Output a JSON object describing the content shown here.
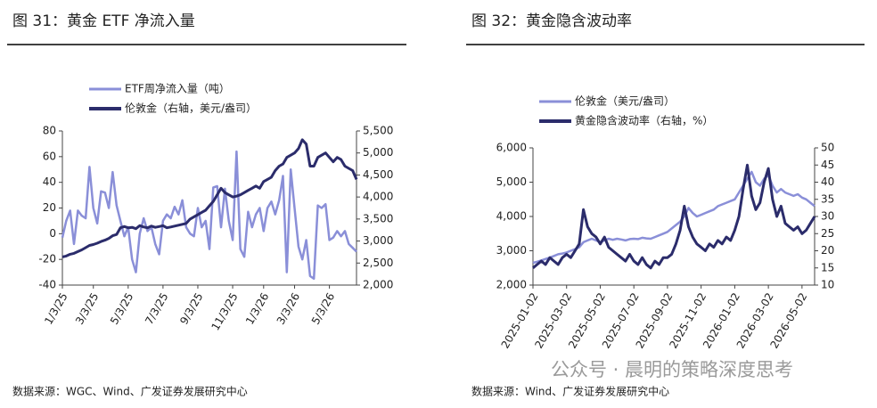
{
  "chart_data": [
    {
      "type": "line",
      "title": "图 31：黄金 ETF 净流入量",
      "source": "数据来源：WGC、Wind、广发证券发展研究中心",
      "categories": [
        "1/3/25",
        null,
        null,
        null,
        null,
        null,
        null,
        null,
        "3/3/25",
        null,
        null,
        null,
        null,
        null,
        null,
        null,
        null,
        "5/3/25",
        null,
        null,
        null,
        null,
        null,
        null,
        null,
        null,
        "7/3/25",
        null,
        null,
        null,
        null,
        null,
        null,
        null,
        null,
        "9/3/25",
        null,
        null,
        null,
        null,
        null,
        null,
        null,
        null,
        "11/3/25",
        null,
        null,
        null,
        null,
        null,
        null,
        null,
        "1/3/26",
        null,
        null,
        null,
        null,
        null,
        null,
        null,
        "3/3/26",
        null,
        null,
        null,
        null,
        null,
        null,
        null,
        null,
        "5/3/26",
        null,
        null,
        null,
        null,
        null,
        null,
        null
      ],
      "series": [
        {
          "name": "ETF周净流入量（吨）",
          "color": "#8a8fd8",
          "values": [
            -3,
            10,
            18,
            -8,
            18,
            14,
            12,
            52,
            20,
            8,
            33,
            32,
            20,
            48,
            22,
            10,
            -2,
            5,
            -20,
            -30,
            0,
            12,
            2,
            5,
            -8,
            -16,
            10,
            15,
            12,
            21,
            15,
            26,
            5,
            0,
            -2,
            20,
            5,
            10,
            -12,
            36,
            37,
            5,
            35,
            10,
            -5,
            64,
            -12,
            -18,
            17,
            5,
            15,
            20,
            2,
            20,
            25,
            15,
            26,
            45,
            -30,
            50,
            20,
            -10,
            -20,
            -5,
            -33,
            -35,
            22,
            20,
            23,
            -5,
            -3,
            2,
            -2,
            2,
            -8,
            -11,
            -14
          ]
        },
        {
          "name": "伦敦金（右轴，美元/盎司）",
          "color": "#2b2c6b",
          "axis": "y2",
          "values": [
            2640,
            2660,
            2700,
            2720,
            2760,
            2800,
            2850,
            2900,
            2920,
            2950,
            2990,
            3020,
            3060,
            3120,
            3150,
            3300,
            3330,
            3300,
            3310,
            3280,
            3350,
            3320,
            3300,
            3340,
            3310,
            3330,
            3350,
            3300,
            3320,
            3340,
            3360,
            3380,
            3400,
            3500,
            3550,
            3600,
            3650,
            3700,
            3800,
            3900,
            4050,
            4200,
            4100,
            4050,
            4000,
            4020,
            4050,
            4100,
            4150,
            4200,
            4250,
            4200,
            4350,
            4400,
            4450,
            4600,
            4700,
            4750,
            4900,
            4950,
            5000,
            5100,
            5300,
            5200,
            4700,
            4700,
            4900,
            4950,
            5000,
            4900,
            4800,
            4900,
            4850,
            4700,
            4650,
            4600,
            4400
          ]
        }
      ],
      "ylim": [
        -40,
        80
      ],
      "yticks": [
        -40,
        -20,
        0,
        20,
        40,
        60,
        80
      ],
      "y2lim": [
        2000,
        5500
      ],
      "y2ticks": [
        {
          "value": 2000,
          "label": "2,000"
        },
        {
          "value": 2500,
          "label": "2,500"
        },
        {
          "value": 3000,
          "label": "3,000"
        },
        {
          "value": 3500,
          "label": "3,500"
        },
        {
          "value": 4000,
          "label": "4,000"
        },
        {
          "value": 4500,
          "label": "4,500"
        },
        {
          "value": 5000,
          "label": "5,000"
        },
        {
          "value": 5500,
          "label": "5,500"
        }
      ]
    },
    {
      "type": "line",
      "title": "图 32：黄金隐含波动率",
      "source": "数据来源：Wind、广发证券发展研究中心",
      "categories": [
        "2025-01-02",
        null,
        null,
        null,
        null,
        null,
        null,
        null,
        "2025-03-02",
        null,
        null,
        null,
        null,
        null,
        null,
        null,
        "2025-05-02",
        null,
        null,
        null,
        null,
        null,
        null,
        null,
        "2025-07-02",
        null,
        null,
        null,
        null,
        null,
        null,
        null,
        "2025-09-02",
        null,
        null,
        null,
        null,
        null,
        null,
        null,
        "2025-11-02",
        null,
        null,
        null,
        null,
        null,
        null,
        null,
        "2026-01-02",
        null,
        null,
        null,
        null,
        null,
        null,
        null,
        "2026-03-02",
        null,
        null,
        null,
        null,
        null,
        null,
        null,
        "2026-05-02",
        null,
        null,
        null
      ],
      "series": [
        {
          "name": "伦敦金（美元/盎司）",
          "color": "#8a8fd8",
          "values": [
            2650,
            2680,
            2720,
            2760,
            2800,
            2850,
            2900,
            2920,
            2950,
            3000,
            3050,
            3100,
            3250,
            3300,
            3350,
            3300,
            3250,
            3300,
            3350,
            3320,
            3350,
            3330,
            3300,
            3340,
            3350,
            3340,
            3380,
            3360,
            3350,
            3400,
            3450,
            3500,
            3550,
            3650,
            3750,
            3850,
            4000,
            4250,
            4100,
            4000,
            4050,
            4100,
            4150,
            4200,
            4300,
            4350,
            4400,
            4450,
            4500,
            4700,
            4900,
            5100,
            5300,
            5000,
            4900,
            5100,
            5200,
            4900,
            4700,
            4800,
            4700,
            4650,
            4600,
            4650,
            4550,
            4500,
            4400,
            4300
          ]
        },
        {
          "name": "黄金隐含波动率（右轴，%）",
          "color": "#2b2c6b",
          "axis": "y2",
          "values": [
            15,
            16,
            17,
            16,
            18,
            17,
            16,
            18,
            19,
            18,
            20,
            22,
            32,
            27,
            25,
            24,
            22,
            24,
            21,
            20,
            19,
            18,
            17,
            19,
            17,
            16,
            18,
            16,
            15,
            17,
            16,
            18,
            18,
            19,
            22,
            26,
            33,
            27,
            24,
            22,
            21,
            20,
            22,
            21,
            23,
            22,
            24,
            23,
            26,
            30,
            38,
            45,
            36,
            32,
            34,
            40,
            44,
            35,
            30,
            33,
            28,
            27,
            26,
            27,
            25,
            26,
            28,
            30
          ]
        }
      ],
      "ylim": [
        2000,
        6000
      ],
      "yticks": [
        {
          "value": 2000,
          "label": "2,000"
        },
        {
          "value": 3000,
          "label": "3,000"
        },
        {
          "value": 4000,
          "label": "4,000"
        },
        {
          "value": 5000,
          "label": "5,000"
        },
        {
          "value": 6000,
          "label": "6,000"
        }
      ],
      "y2lim": [
        10,
        50
      ],
      "y2ticks": [
        10,
        15,
        20,
        25,
        30,
        35,
        40,
        45,
        50
      ]
    }
  ],
  "watermark": "公众号 · 晨明的策略深度思考"
}
